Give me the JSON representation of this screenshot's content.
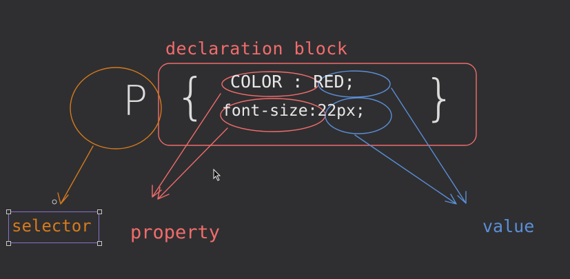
{
  "title": "declaration block",
  "selector": {
    "char": "P",
    "label": "selector"
  },
  "block": {
    "open_brace": "{",
    "close_brace": "}",
    "line1": "COLOR : RED;",
    "line2": "font-size:22px;"
  },
  "labels": {
    "property": "property",
    "value": "value"
  },
  "colors": {
    "background": "#2f2f31",
    "property": "#f26c6c",
    "value": "#5b8fd8",
    "selector": "#d77a1c",
    "selection": "#8a72c9",
    "text": "#e8e8e8"
  }
}
